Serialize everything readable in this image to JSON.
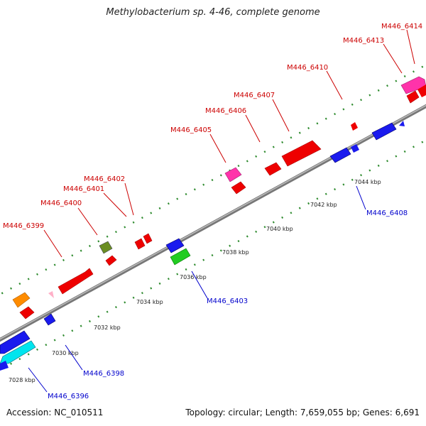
{
  "title": "Methylobacterium sp. 4-46, complete genome",
  "footer": {
    "accession": "Accession: NC_010511",
    "topology": "Topology: circular; Length: 7,659,055 bp; Genes: 6,691"
  },
  "colors": {
    "forward_label": "#cc0000",
    "reverse_label": "#0000cc",
    "backbone": "#888888",
    "tick": "#2e8b2e"
  },
  "ticks": [
    {
      "kbp": 7028,
      "label": "7028 kbp"
    },
    {
      "kbp": 7030,
      "label": "7030 kbp"
    },
    {
      "kbp": 7032,
      "label": "7032 kbp"
    },
    {
      "kbp": 7034,
      "label": "7034 kbp"
    },
    {
      "kbp": 7036,
      "label": "7036 kbp"
    },
    {
      "kbp": 7038,
      "label": "7038 kbp"
    },
    {
      "kbp": 7040,
      "label": "7040 kbp"
    },
    {
      "kbp": 7042,
      "label": "7042 kbp"
    },
    {
      "kbp": 7044,
      "label": "7044 kbp"
    }
  ],
  "forward_labels": [
    "M446_6399",
    "M446_6400",
    "M446_6401",
    "M446_6402",
    "M446_6405",
    "M446_6406",
    "M446_6407",
    "M446_6410",
    "M446_6413",
    "M446_6414"
  ],
  "reverse_labels": [
    "M446_6396",
    "M446_6398",
    "M446_6403",
    "M446_6408"
  ]
}
